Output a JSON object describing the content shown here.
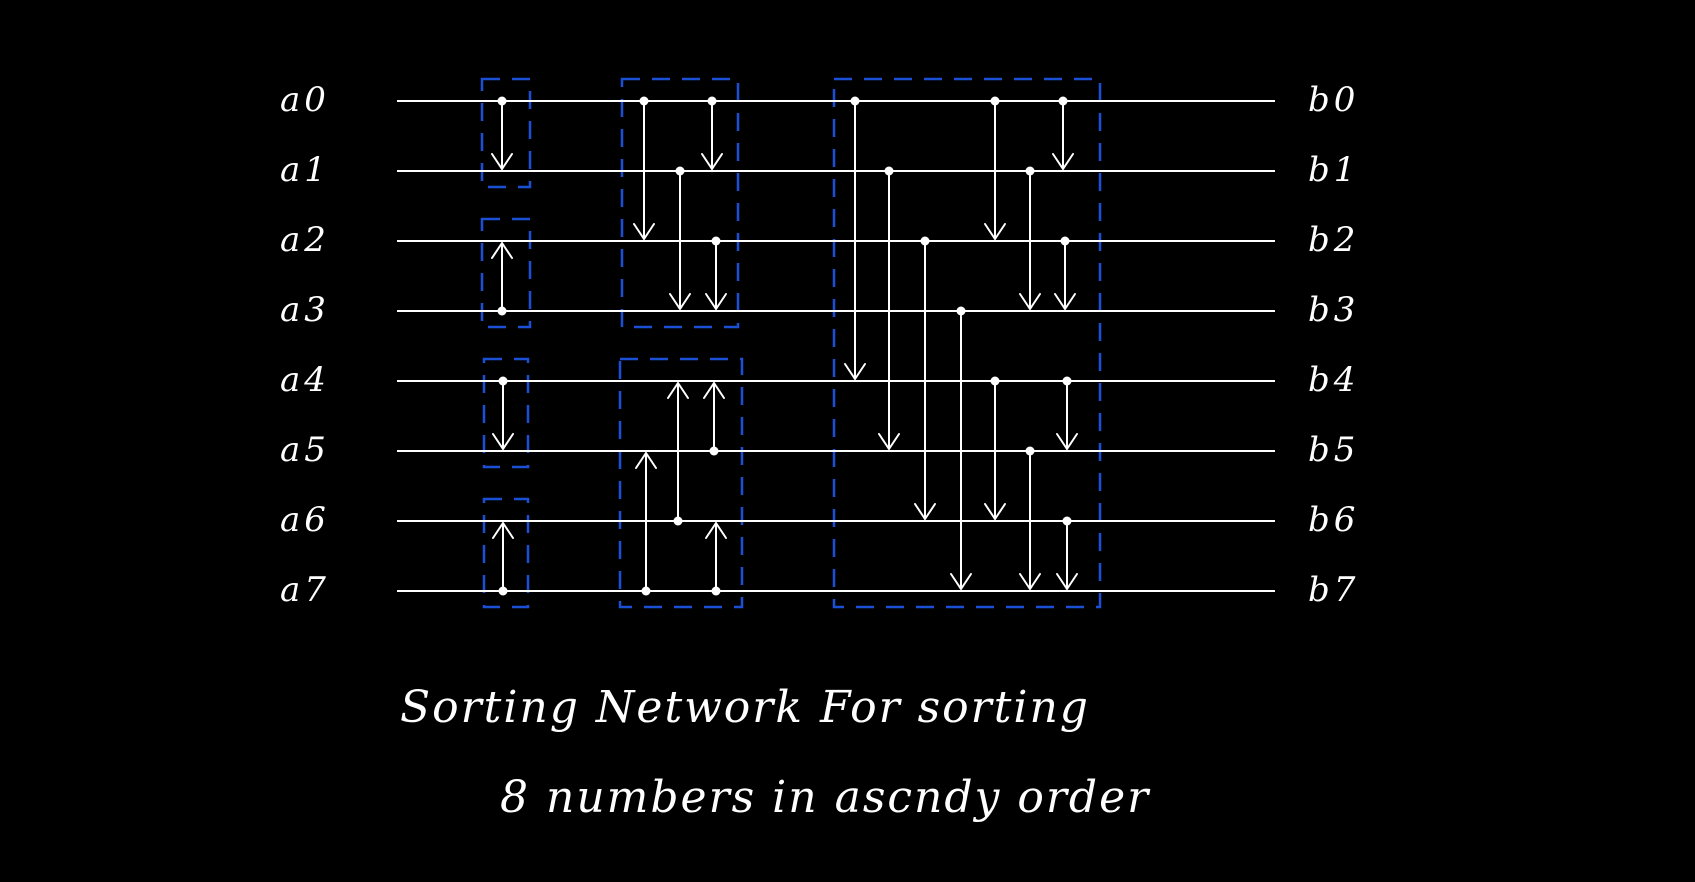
{
  "inputs": [
    "a0",
    "a1",
    "a2",
    "a3",
    "a4",
    "a5",
    "a6",
    "a7"
  ],
  "outputs": [
    "b0",
    "b1",
    "b2",
    "b3",
    "b4",
    "b5",
    "b6",
    "b7"
  ],
  "caption": {
    "line1": "Sorting Network For sorting",
    "line2": "8 numbers in ascndy order"
  },
  "colors": {
    "background": "#000000",
    "ink": "#ffffff",
    "stage_box": "#1a4fd6"
  },
  "stages": [
    {
      "name": "stage-1",
      "boxes": [
        {
          "wires": [
            0,
            1
          ],
          "comparators": [
            {
              "from": 0,
              "to": 1
            }
          ]
        },
        {
          "wires": [
            2,
            3
          ],
          "comparators": [
            {
              "from": 3,
              "to": 2
            }
          ]
        },
        {
          "wires": [
            4,
            5
          ],
          "comparators": [
            {
              "from": 4,
              "to": 5
            }
          ]
        },
        {
          "wires": [
            6,
            7
          ],
          "comparators": [
            {
              "from": 7,
              "to": 6
            }
          ]
        }
      ]
    },
    {
      "name": "stage-2",
      "boxes": [
        {
          "wires": [
            0,
            3
          ],
          "comparators": [
            {
              "from": 0,
              "to": 2
            },
            {
              "from": 0,
              "to": 1
            },
            {
              "from": 1,
              "to": 3
            },
            {
              "from": 2,
              "to": 3
            }
          ]
        },
        {
          "wires": [
            4,
            7
          ],
          "comparators": [
            {
              "from": 7,
              "to": 5
            },
            {
              "from": 6,
              "to": 4
            },
            {
              "from": 5,
              "to": 4
            },
            {
              "from": 7,
              "to": 6
            }
          ]
        }
      ]
    },
    {
      "name": "stage-3",
      "boxes": [
        {
          "wires": [
            0,
            7
          ],
          "comparators": [
            {
              "from": 0,
              "to": 4
            },
            {
              "from": 1,
              "to": 5
            },
            {
              "from": 2,
              "to": 6
            },
            {
              "from": 3,
              "to": 7
            },
            {
              "from": 0,
              "to": 2
            },
            {
              "from": 4,
              "to": 6
            },
            {
              "from": 1,
              "to": 3
            },
            {
              "from": 5,
              "to": 7
            },
            {
              "from": 0,
              "to": 1
            },
            {
              "from": 2,
              "to": 3
            },
            {
              "from": 4,
              "to": 5
            },
            {
              "from": 6,
              "to": 7
            }
          ]
        }
      ]
    }
  ]
}
